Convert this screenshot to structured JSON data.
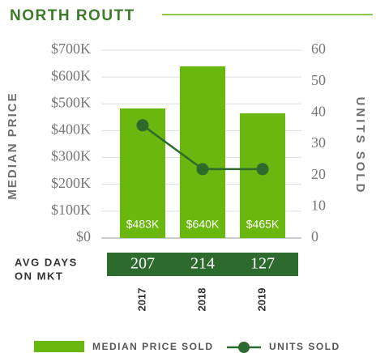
{
  "chart_data": {
    "type": "bar_line",
    "title": "NORTH ROUTT",
    "ylabel": "MEDIAN PRICE",
    "y2label": "UNITS SOLD",
    "categories": [
      "2017",
      "2018",
      "2019"
    ],
    "series": [
      {
        "name": "MEDIAN PRICE SOLD",
        "type": "bar",
        "color": "#6ab70f",
        "values": [
          483000,
          640000,
          465000
        ],
        "value_labels": [
          "$483K",
          "$640K",
          "$465K"
        ]
      },
      {
        "name": "UNITS SOLD",
        "type": "line",
        "axis": "y2",
        "color": "#2d6a2e",
        "values": [
          36,
          22,
          22
        ]
      }
    ],
    "ylim": [
      0,
      700000
    ],
    "yticks": [
      {
        "value": 0,
        "label": "$0"
      },
      {
        "value": 100000,
        "label": "$100K"
      },
      {
        "value": 200000,
        "label": "$200K"
      },
      {
        "value": 300000,
        "label": "$300K"
      },
      {
        "value": 400000,
        "label": "$400K"
      },
      {
        "value": 500000,
        "label": "$500K"
      },
      {
        "value": 600000,
        "label": "$600K"
      },
      {
        "value": 700000,
        "label": "$700K"
      }
    ],
    "y2lim": [
      0,
      60
    ],
    "y2ticks": [
      0,
      10,
      20,
      30,
      40,
      50,
      60
    ],
    "grid": true,
    "avg_days": {
      "label_lines": [
        "AVG DAYS",
        "ON MKT"
      ],
      "values": [
        207,
        214,
        127
      ],
      "color": "#2d6a2e"
    }
  }
}
